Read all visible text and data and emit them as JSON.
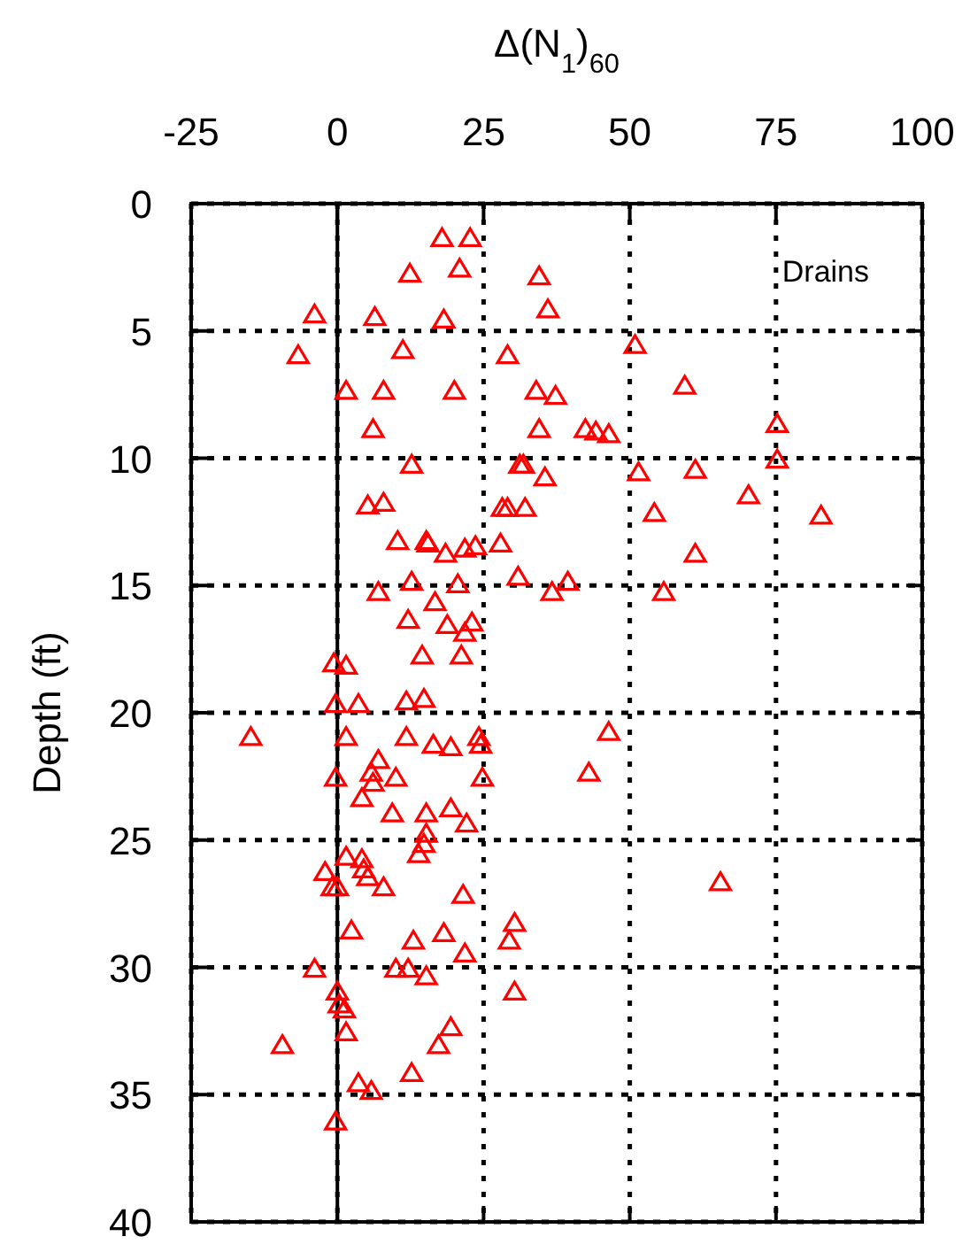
{
  "chart_data": {
    "type": "scatter",
    "xlabel": "Δ(N$_{1}$)$_{60}$",
    "ylabel": "Depth (ft)",
    "annotations": [
      "Drains"
    ],
    "xlim": [
      -25,
      100
    ],
    "xticks": [
      -25,
      0,
      25,
      50,
      75,
      100
    ],
    "ylim": [
      40,
      0
    ],
    "yticks": [
      0,
      5,
      10,
      15,
      20,
      25,
      30,
      35,
      40
    ],
    "grid": true,
    "marker": "triangle",
    "ref_lines": [
      {
        "axis": "x",
        "value": 0,
        "line_style": "solid",
        "color": "#000000"
      }
    ],
    "series": [
      {
        "color": "#ff0000",
        "x": [
          17.9,
          22.7,
          12.4,
          20.9,
          34.5,
          36,
          -3.9,
          6.4,
          18.2,
          -6.7,
          11.2,
          50.9,
          29.1,
          1.5,
          7.9,
          20,
          34,
          37.3,
          59.4,
          6.1,
          34.5,
          42.4,
          44.2,
          46.4,
          75.2,
          75.2,
          12.7,
          31.2,
          31.8,
          35.5,
          51.5,
          61.2,
          70.3,
          5.2,
          7.9,
          28.2,
          29.1,
          32.1,
          54.2,
          82.7,
          61.2,
          10.3,
          15.2,
          15.5,
          27.9,
          23.6,
          21.8,
          18.5,
          12.7,
          20.6,
          30.9,
          36.7,
          39.4,
          55.8,
          7,
          16.7,
          23,
          21.8,
          18.8,
          12.1,
          14.5,
          21.2,
          -0.6,
          1.5,
          -0.3,
          11.8,
          14.8,
          3.6,
          -14.8,
          1.5,
          11.8,
          16.4,
          19.4,
          24.2,
          24.5,
          46.4,
          43,
          7,
          5.8,
          6.1,
          10,
          -0.3,
          24.8,
          4.2,
          9.4,
          15.2,
          19.4,
          22.1,
          15.2,
          14.8,
          13.9,
          1.5,
          4.2,
          4.5,
          -2.1,
          -0.9,
          0,
          5.2,
          7.9,
          21.5,
          65.5,
          2.4,
          30.3,
          29.4,
          13,
          18.2,
          21.8,
          -3.9,
          10,
          12.1,
          15.2,
          0,
          1.2,
          0.3,
          1.5,
          19.4,
          30.3,
          -9.4,
          17.3,
          12.7,
          3.6,
          5.8,
          -0.3
        ],
        "values": [
          1.4,
          1.4,
          2.8,
          2.6,
          2.9,
          4.2,
          4.4,
          4.5,
          4.6,
          6,
          5.8,
          5.6,
          6,
          7.4,
          7.4,
          7.4,
          7.4,
          7.6,
          7.2,
          8.9,
          8.9,
          8.9,
          9,
          9.1,
          8.7,
          10.1,
          10.3,
          10.3,
          10.3,
          10.8,
          10.6,
          10.5,
          11.5,
          11.9,
          11.8,
          12,
          12,
          12,
          12.2,
          12.3,
          13.8,
          13.3,
          13.3,
          13.4,
          13.4,
          13.5,
          13.6,
          13.8,
          14.9,
          15,
          14.7,
          15.3,
          14.9,
          15.3,
          15.3,
          15.7,
          16.5,
          16.9,
          16.6,
          16.4,
          17.8,
          17.8,
          18.1,
          18.2,
          19.7,
          19.6,
          19.5,
          19.7,
          21,
          21,
          21,
          21.3,
          21.4,
          21,
          21.3,
          20.8,
          22.4,
          21.9,
          22.4,
          22.8,
          22.6,
          22.6,
          22.6,
          23.4,
          24,
          24,
          23.8,
          24.4,
          24.8,
          25.2,
          25.6,
          25.7,
          25.8,
          26.2,
          26.3,
          26.9,
          26.9,
          26.5,
          26.9,
          27.2,
          26.7,
          28.6,
          28.3,
          29,
          29,
          28.7,
          29.5,
          30.1,
          30.1,
          30.1,
          30.4,
          31,
          31.7,
          31.5,
          32.6,
          32.4,
          31,
          33.1,
          33.1,
          34.2,
          34.6,
          34.9,
          36.1
        ]
      }
    ]
  }
}
